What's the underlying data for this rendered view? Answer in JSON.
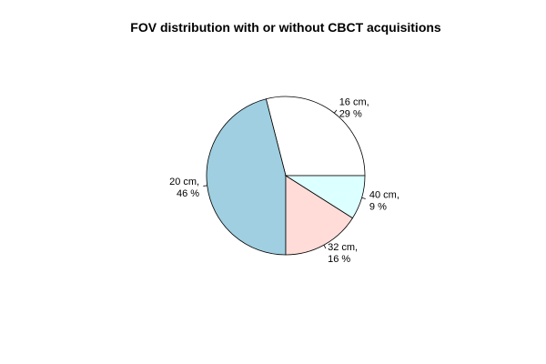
{
  "chart_data": {
    "type": "pie",
    "title": "FOV distribution with or without CBCT acquisitions",
    "direction": "counterclockwise from 3 o'clock",
    "slices": [
      {
        "label_line1": "16 cm,",
        "label_line2": "29 %",
        "value": 29,
        "color": "#ffffff"
      },
      {
        "label_line1": "20 cm,",
        "label_line2": "46 %",
        "value": 46,
        "color": "#9fcfe0"
      },
      {
        "label_line1": "32 cm,",
        "label_line2": "16 %",
        "value": 16,
        "color": "#ffdcd8"
      },
      {
        "label_line1": "40 cm,",
        "label_line2": "9 %",
        "value": 9,
        "color": "#dcffff"
      }
    ]
  }
}
